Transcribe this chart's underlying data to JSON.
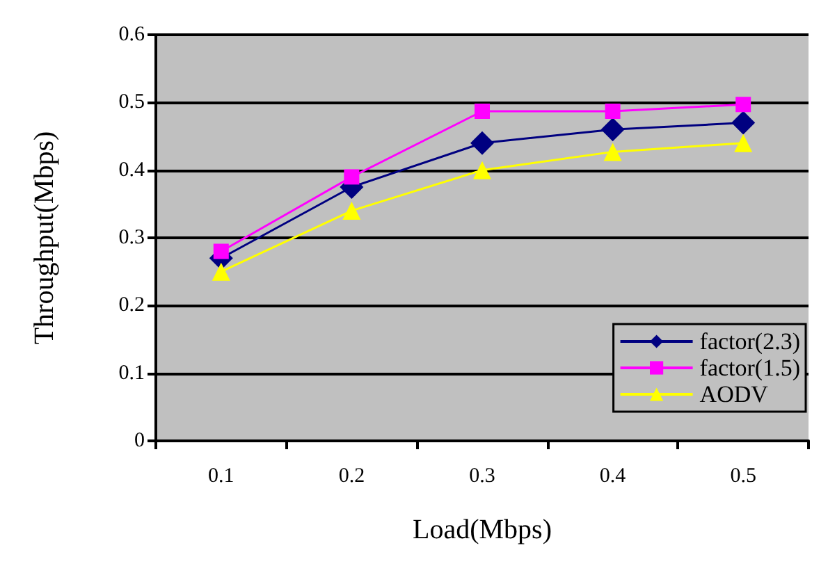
{
  "chart_data": {
    "type": "line",
    "xlabel": "Load(Mbps)",
    "ylabel": "Throughput(Mbps)",
    "categories": [
      "0.1",
      "0.2",
      "0.3",
      "0.4",
      "0.5"
    ],
    "series": [
      {
        "name": "factor(2.3)",
        "color": "#000080",
        "marker": "diamond",
        "values": [
          0.27,
          0.375,
          0.44,
          0.46,
          0.47
        ]
      },
      {
        "name": "factor(1.5)",
        "color": "#ff00ff",
        "marker": "square",
        "values": [
          0.28,
          0.39,
          0.487,
          0.487,
          0.497
        ]
      },
      {
        "name": "AODV",
        "color": "#ffff00",
        "marker": "triangle",
        "values": [
          0.25,
          0.34,
          0.4,
          0.427,
          0.44
        ]
      }
    ],
    "ylim": [
      0,
      0.6
    ],
    "yticks": [
      0,
      0.1,
      0.2,
      0.3,
      0.4,
      0.5,
      0.6
    ],
    "grid": "y",
    "legend": "bottom right"
  }
}
